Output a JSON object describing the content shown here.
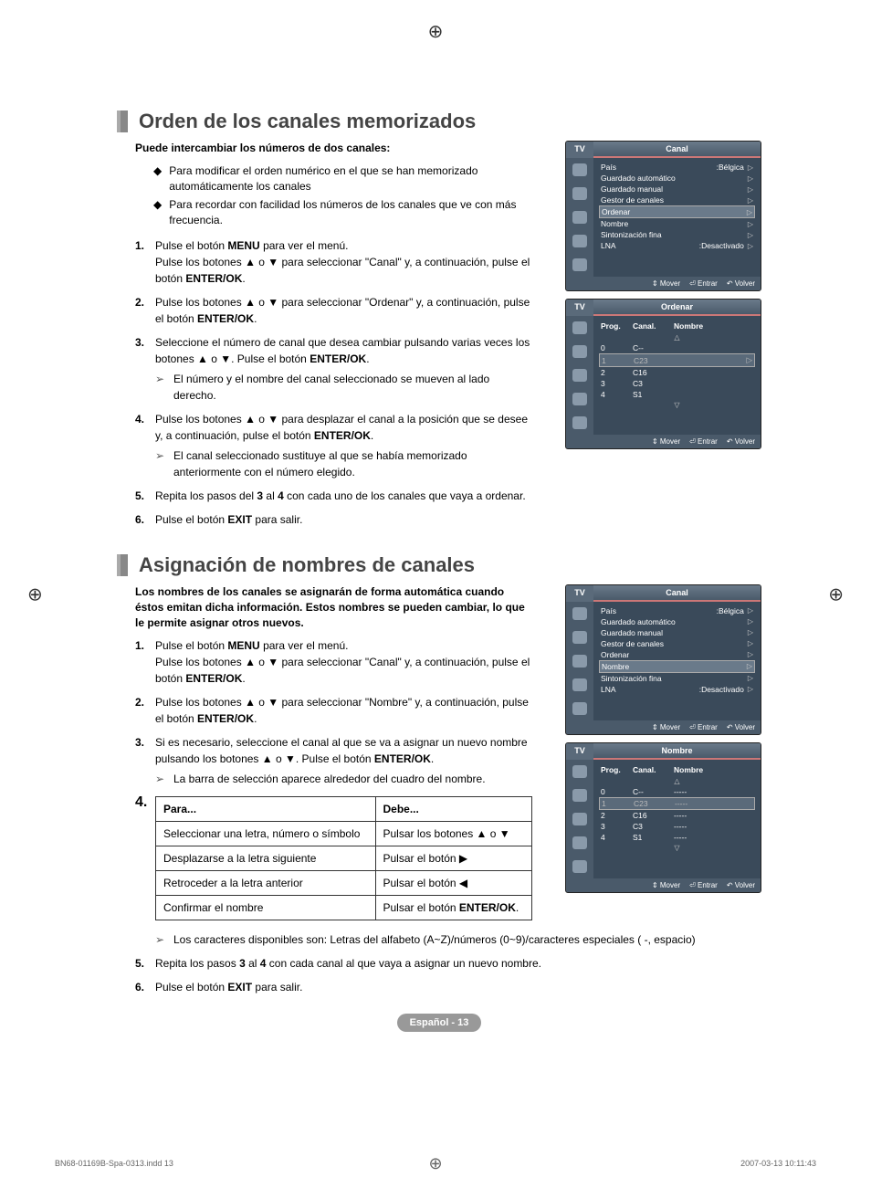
{
  "register_marks": {
    "top": "⊕",
    "left": "⊕",
    "right": "⊕",
    "bottom": "⊕"
  },
  "section1": {
    "title": "Orden de los canales memorizados",
    "intro": "Puede intercambiar los números de dos canales:",
    "bullets": [
      "Para modificar el orden numérico en el que se han memorizado automáticamente los canales",
      "Para recordar con facilidad los números de los canales que ve con más frecuencia."
    ],
    "steps": [
      {
        "n": "1.",
        "t": "Pulse el botón <b>MENU</b> para ver el menú.<br>Pulse los botones ▲ o ▼ para seleccionar \"Canal\" y, a continuación, pulse el botón <b>ENTER/OK</b>."
      },
      {
        "n": "2.",
        "t": "Pulse los botones ▲ o ▼ para seleccionar \"Ordenar\" y, a continuación, pulse el botón <b>ENTER/OK</b>."
      },
      {
        "n": "3.",
        "t": "Seleccione el número de canal que desea cambiar pulsando varias veces los botones ▲ o ▼. Pulse el botón <b>ENTER/OK</b>.",
        "sub": "El número y el nombre del canal seleccionado se mueven al lado derecho."
      },
      {
        "n": "4.",
        "t": "Pulse los botones ▲ o ▼ para desplazar el canal a la posición que se desee y, a continuación, pulse el botón <b>ENTER/OK</b>.",
        "sub": "El canal seleccionado sustituye al que se había memorizado anteriormente con el número elegido."
      },
      {
        "n": "5.",
        "t": "Repita los pasos del <b>3</b> al <b>4</b> con cada uno de los canales que vaya a ordenar."
      },
      {
        "n": "6.",
        "t": "Pulse el botón <b>EXIT</b> para salir."
      }
    ]
  },
  "section2": {
    "title": "Asignación de nombres de canales",
    "intro": "Los nombres de los canales se asignarán de forma automática cuando éstos emitan dicha información. Estos nombres se pueden cambiar, lo que le permite asignar otros nuevos.",
    "steps": [
      {
        "n": "1.",
        "t": "Pulse el botón <b>MENU</b> para ver el menú.<br>Pulse los botones ▲ o ▼ para seleccionar \"Canal\" y, a continuación, pulse el botón <b>ENTER/OK</b>."
      },
      {
        "n": "2.",
        "t": "Pulse los botones ▲ o ▼ para seleccionar \"Nombre\" y, a continuación, pulse el botón <b>ENTER/OK</b>."
      },
      {
        "n": "3.",
        "t": "Si es necesario, seleccione el canal al que se va a asignar un nuevo nombre pulsando los botones ▲ o ▼. Pulse el botón <b>ENTER/OK</b>.",
        "sub": "La barra de selección aparece alrededor del cuadro del nombre."
      }
    ],
    "table": {
      "n": "4.",
      "head": [
        "Para...",
        "Debe..."
      ],
      "rows": [
        [
          "Seleccionar una letra, número o símbolo",
          "Pulsar los botones ▲ o ▼"
        ],
        [
          "Desplazarse a la letra siguiente",
          "Pulsar el botón ▶"
        ],
        [
          "Retroceder a la letra anterior",
          "Pulsar el botón ◀"
        ],
        [
          "Confirmar el nombre",
          "Pulsar el botón <b>ENTER/OK</b>."
        ]
      ]
    },
    "after_table_sub": "Los caracteres disponibles son: Letras del alfabeto (A~Z)/números (0~9)/caracteres especiales ( -, espacio)",
    "steps_after": [
      {
        "n": "5.",
        "t": "Repita los pasos <b>3</b> al <b>4</b> con cada canal al que vaya a asignar un nuevo nombre."
      },
      {
        "n": "6.",
        "t": "Pulse el botón <b>EXIT</b> para salir."
      }
    ]
  },
  "menu1": {
    "tab_left": "TV",
    "tab_right": "Canal",
    "items": [
      {
        "l": "País",
        "v": ":Bélgica",
        "a": "▷"
      },
      {
        "l": "Guardado automático",
        "v": "",
        "a": "▷"
      },
      {
        "l": "Guardado manual",
        "v": "",
        "a": "▷"
      },
      {
        "l": "Gestor de canales",
        "v": "",
        "a": "▷"
      },
      {
        "l": "Ordenar",
        "v": "",
        "a": "▷",
        "sel": true
      },
      {
        "l": "Nombre",
        "v": "",
        "a": "▷"
      },
      {
        "l": "Sintonización fina",
        "v": "",
        "a": "▷"
      },
      {
        "l": "LNA",
        "v": ":Desactivado",
        "a": "▷"
      }
    ],
    "footer": [
      "⇕ Mover",
      "⏎ Entrar",
      "↶ Volver"
    ]
  },
  "menu2": {
    "tab_left": "TV",
    "tab_right": "Ordenar",
    "head": [
      "Prog.",
      "Canal.",
      "Nombre"
    ],
    "rows": [
      {
        "p": "0",
        "c": "C--",
        "n": ""
      },
      {
        "p": "1",
        "c": "C23",
        "n": "",
        "sel": true,
        "a": "▷"
      },
      {
        "p": "2",
        "c": "C16",
        "n": ""
      },
      {
        "p": "3",
        "c": "C3",
        "n": ""
      },
      {
        "p": "4",
        "c": "S1",
        "n": ""
      }
    ],
    "footer": [
      "⇕ Mover",
      "⏎ Entrar",
      "↶ Volver"
    ]
  },
  "menu3": {
    "tab_left": "TV",
    "tab_right": "Canal",
    "items": [
      {
        "l": "País",
        "v": ":Bélgica",
        "a": "▷"
      },
      {
        "l": "Guardado automático",
        "v": "",
        "a": "▷"
      },
      {
        "l": "Guardado manual",
        "v": "",
        "a": "▷"
      },
      {
        "l": "Gestor de canales",
        "v": "",
        "a": "▷"
      },
      {
        "l": "Ordenar",
        "v": "",
        "a": "▷"
      },
      {
        "l": "Nombre",
        "v": "",
        "a": "▷",
        "sel": true
      },
      {
        "l": "Sintonización fina",
        "v": "",
        "a": "▷"
      },
      {
        "l": "LNA",
        "v": ":Desactivado",
        "a": "▷"
      }
    ],
    "footer": [
      "⇕ Mover",
      "⏎ Entrar",
      "↶ Volver"
    ]
  },
  "menu4": {
    "tab_left": "TV",
    "tab_right": "Nombre",
    "head": [
      "Prog.",
      "Canal.",
      "Nombre"
    ],
    "rows": [
      {
        "p": "0",
        "c": "C--",
        "n": "-----"
      },
      {
        "p": "1",
        "c": "C23",
        "n": "-----",
        "sel": true
      },
      {
        "p": "2",
        "c": "C16",
        "n": "-----"
      },
      {
        "p": "3",
        "c": "C3",
        "n": "-----"
      },
      {
        "p": "4",
        "c": "S1",
        "n": "-----"
      }
    ],
    "footer": [
      "⇕ Mover",
      "⏎ Entrar",
      "↶ Volver"
    ]
  },
  "page_badge": "Español - 13",
  "doc_footer": {
    "left": "BN68-01169B-Spa-0313.indd   13",
    "right": "2007-03-13    10:11:43"
  }
}
